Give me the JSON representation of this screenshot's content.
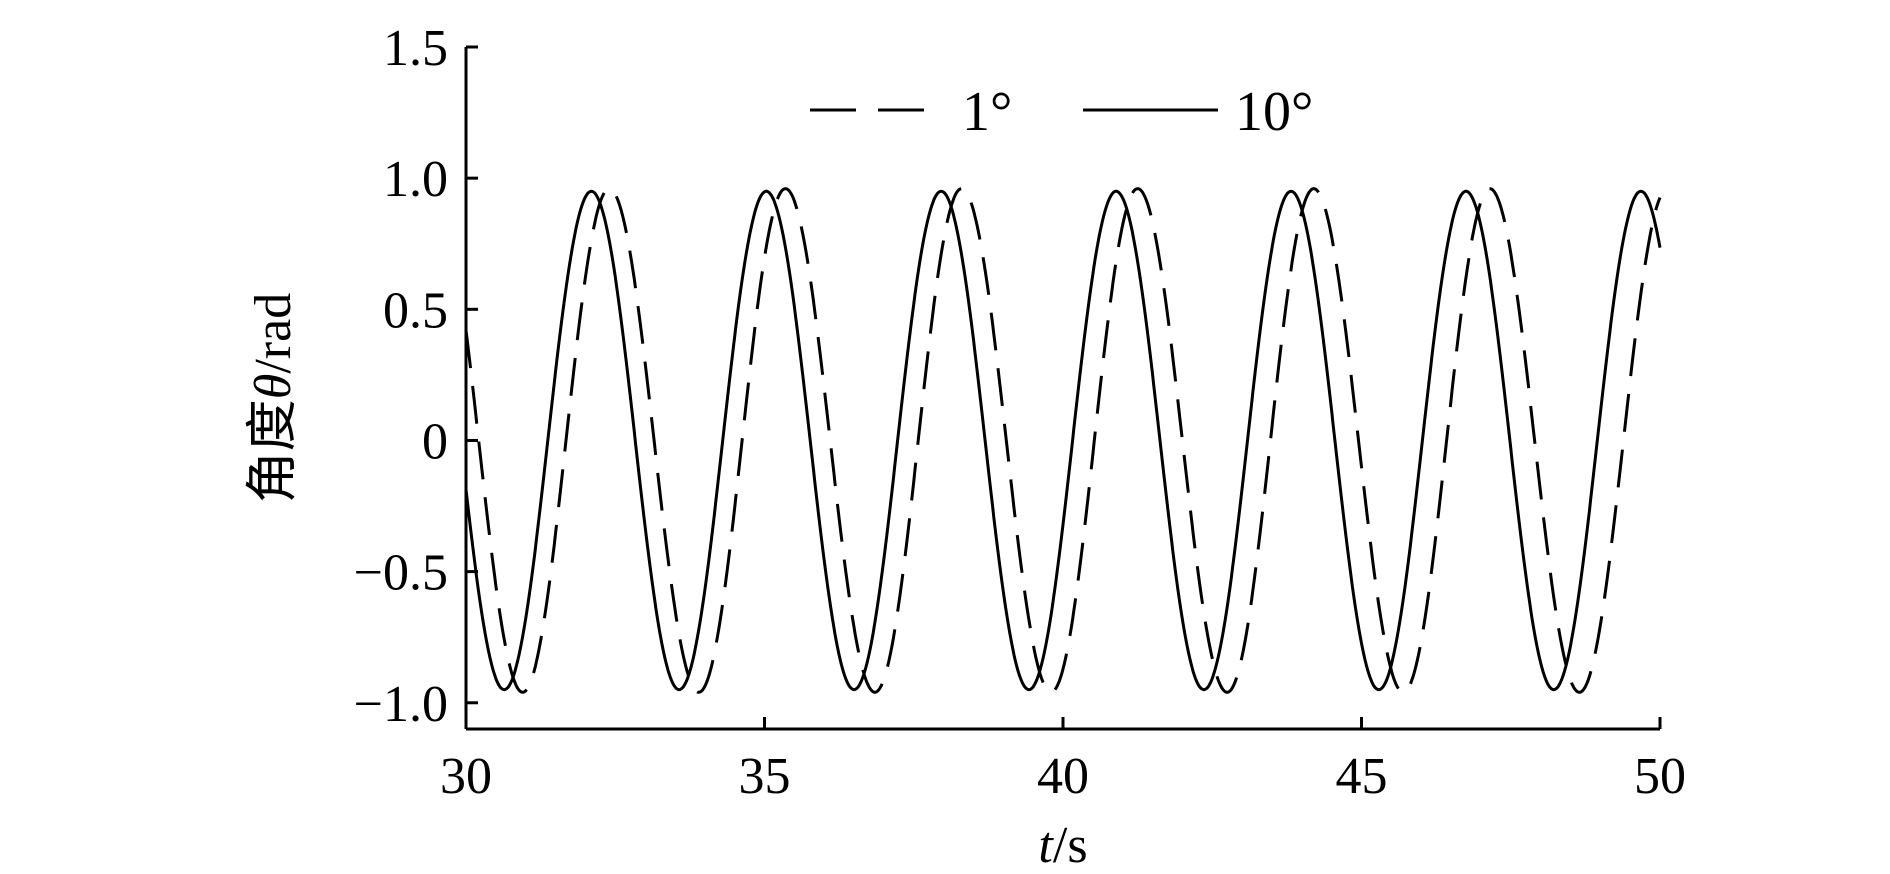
{
  "chart_data": {
    "type": "line",
    "xlabel_italic": "t",
    "xlabel_rest": "/s",
    "ylabel_prefix": "角度",
    "ylabel_italic": "θ",
    "ylabel_rest": "/rad",
    "xlim": [
      30,
      50
    ],
    "ylim": [
      -1.1,
      1.5
    ],
    "xticks": [
      30,
      35,
      40,
      45,
      50
    ],
    "xtick_labels": [
      "30",
      "35",
      "40",
      "45",
      "50"
    ],
    "yticks": [
      1.5,
      1.0,
      0.5,
      0,
      -0.5,
      -1.0
    ],
    "ytick_labels": [
      "1.5",
      "1.0",
      "0.5",
      "0",
      "−0.5",
      "−1.0"
    ],
    "grid": false,
    "legend_position": "top-center",
    "series": [
      {
        "name": "1°",
        "style": "dashed",
        "amplitude": 0.96,
        "period": 2.95,
        "peak_times": [
          32.4,
          35.35,
          38.3,
          41.25,
          44.2,
          47.15
        ],
        "trough_times": [
          30.95,
          33.9,
          36.85,
          39.8,
          42.75,
          45.7,
          48.65
        ]
      },
      {
        "name": "10°",
        "style": "solid",
        "amplitude": 0.95,
        "period": 2.93,
        "peak_times": [
          32.1,
          35.03,
          37.96,
          40.89,
          43.82,
          46.75,
          49.68
        ],
        "trough_times": [
          30.64,
          33.57,
          36.5,
          39.43,
          42.36,
          45.29,
          48.22
        ]
      }
    ]
  }
}
